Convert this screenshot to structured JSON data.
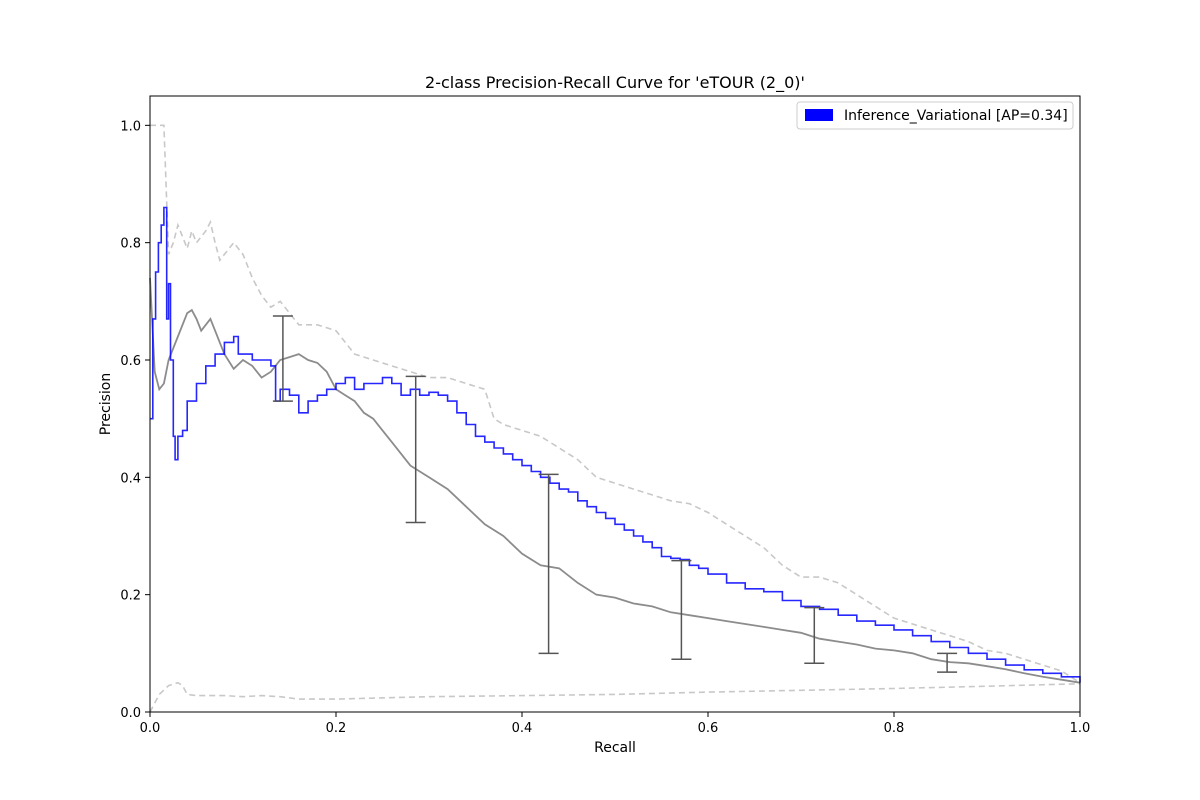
{
  "chart_data": {
    "type": "line",
    "title": "2-class Precision-Recall Curve for 'eTOUR (2_0)'",
    "xlabel": "Recall",
    "ylabel": "Precision",
    "xlim": [
      0,
      1
    ],
    "ylim": [
      0,
      1.05
    ],
    "xticks": [
      "0.0",
      "0.2",
      "0.4",
      "0.6",
      "0.8",
      "1.0"
    ],
    "yticks": [
      "0.0",
      "0.2",
      "0.4",
      "0.6",
      "0.8",
      "1.0"
    ],
    "grid": false,
    "legend": {
      "placement": "top-right",
      "entries": [
        {
          "label": "Inference_Variational [AP=0.34]",
          "color": "#0000ff"
        }
      ]
    },
    "series": [
      {
        "name": "Inference_Variational [AP=0.34]",
        "role": "main",
        "color": "#0000ff",
        "step": true,
        "x": [
          0.0,
          0.003,
          0.006,
          0.009,
          0.012,
          0.015,
          0.018,
          0.02,
          0.022,
          0.025,
          0.027,
          0.03,
          0.035,
          0.04,
          0.05,
          0.06,
          0.07,
          0.08,
          0.09,
          0.095,
          0.1,
          0.11,
          0.12,
          0.13,
          0.135,
          0.14,
          0.15,
          0.16,
          0.17,
          0.18,
          0.19,
          0.2,
          0.21,
          0.22,
          0.23,
          0.24,
          0.25,
          0.26,
          0.27,
          0.28,
          0.29,
          0.3,
          0.31,
          0.32,
          0.33,
          0.34,
          0.35,
          0.36,
          0.37,
          0.38,
          0.39,
          0.4,
          0.41,
          0.42,
          0.43,
          0.44,
          0.45,
          0.46,
          0.47,
          0.48,
          0.49,
          0.5,
          0.51,
          0.52,
          0.53,
          0.54,
          0.55,
          0.56,
          0.57,
          0.58,
          0.59,
          0.6,
          0.62,
          0.64,
          0.66,
          0.68,
          0.7,
          0.72,
          0.74,
          0.76,
          0.78,
          0.8,
          0.82,
          0.84,
          0.86,
          0.88,
          0.9,
          0.92,
          0.94,
          0.96,
          0.98,
          1.0
        ],
        "y": [
          0.5,
          0.67,
          0.75,
          0.8,
          0.83,
          0.86,
          0.67,
          0.73,
          0.6,
          0.47,
          0.43,
          0.47,
          0.48,
          0.53,
          0.56,
          0.59,
          0.61,
          0.63,
          0.64,
          0.61,
          0.61,
          0.6,
          0.6,
          0.59,
          0.53,
          0.55,
          0.54,
          0.51,
          0.53,
          0.54,
          0.55,
          0.56,
          0.57,
          0.55,
          0.56,
          0.56,
          0.57,
          0.56,
          0.54,
          0.55,
          0.54,
          0.545,
          0.54,
          0.53,
          0.51,
          0.49,
          0.47,
          0.46,
          0.45,
          0.44,
          0.43,
          0.42,
          0.41,
          0.4,
          0.39,
          0.38,
          0.375,
          0.36,
          0.35,
          0.34,
          0.33,
          0.32,
          0.31,
          0.3,
          0.29,
          0.28,
          0.265,
          0.262,
          0.26,
          0.25,
          0.245,
          0.235,
          0.22,
          0.21,
          0.205,
          0.19,
          0.18,
          0.175,
          0.165,
          0.155,
          0.148,
          0.14,
          0.13,
          0.12,
          0.11,
          0.1,
          0.09,
          0.08,
          0.072,
          0.066,
          0.06,
          0.05
        ]
      },
      {
        "name": "",
        "role": "mean",
        "color": "#8c8c8c",
        "x": [
          0.0,
          0.005,
          0.01,
          0.015,
          0.02,
          0.03,
          0.04,
          0.045,
          0.05,
          0.055,
          0.06,
          0.065,
          0.07,
          0.08,
          0.09,
          0.1,
          0.11,
          0.12,
          0.13,
          0.14,
          0.15,
          0.16,
          0.17,
          0.18,
          0.19,
          0.2,
          0.21,
          0.22,
          0.23,
          0.24,
          0.25,
          0.26,
          0.28,
          0.3,
          0.32,
          0.34,
          0.36,
          0.38,
          0.4,
          0.42,
          0.44,
          0.46,
          0.48,
          0.5,
          0.52,
          0.54,
          0.56,
          0.58,
          0.6,
          0.62,
          0.64,
          0.66,
          0.68,
          0.7,
          0.72,
          0.74,
          0.76,
          0.78,
          0.8,
          0.82,
          0.84,
          0.86,
          0.88,
          0.9,
          0.92,
          0.94,
          0.96,
          0.98,
          1.0
        ],
        "y": [
          0.74,
          0.58,
          0.55,
          0.56,
          0.6,
          0.64,
          0.68,
          0.685,
          0.67,
          0.65,
          0.66,
          0.67,
          0.65,
          0.61,
          0.585,
          0.6,
          0.59,
          0.57,
          0.58,
          0.6,
          0.605,
          0.61,
          0.6,
          0.595,
          0.58,
          0.55,
          0.54,
          0.53,
          0.51,
          0.5,
          0.48,
          0.46,
          0.42,
          0.4,
          0.38,
          0.35,
          0.32,
          0.3,
          0.27,
          0.25,
          0.245,
          0.22,
          0.2,
          0.195,
          0.185,
          0.18,
          0.17,
          0.165,
          0.16,
          0.155,
          0.15,
          0.145,
          0.14,
          0.135,
          0.125,
          0.12,
          0.115,
          0.108,
          0.105,
          0.1,
          0.09,
          0.085,
          0.083,
          0.078,
          0.073,
          0.066,
          0.06,
          0.055,
          0.05
        ]
      },
      {
        "name": "",
        "role": "upper",
        "color": "#c8c8c8",
        "dashed": true,
        "x": [
          0.0,
          0.005,
          0.01,
          0.015,
          0.02,
          0.025,
          0.03,
          0.035,
          0.04,
          0.045,
          0.05,
          0.06,
          0.065,
          0.07,
          0.075,
          0.08,
          0.09,
          0.1,
          0.11,
          0.12,
          0.13,
          0.14,
          0.15,
          0.16,
          0.17,
          0.18,
          0.2,
          0.22,
          0.24,
          0.26,
          0.28,
          0.3,
          0.32,
          0.34,
          0.36,
          0.37,
          0.38,
          0.4,
          0.42,
          0.44,
          0.46,
          0.48,
          0.5,
          0.52,
          0.54,
          0.56,
          0.58,
          0.6,
          0.62,
          0.64,
          0.66,
          0.68,
          0.7,
          0.72,
          0.74,
          0.76,
          0.78,
          0.8,
          0.82,
          0.84,
          0.86,
          0.88,
          0.9,
          0.92,
          0.94,
          0.96,
          0.98,
          1.0
        ],
        "y": [
          1.0,
          1.0,
          1.0,
          1.0,
          0.78,
          0.8,
          0.83,
          0.81,
          0.79,
          0.82,
          0.8,
          0.82,
          0.835,
          0.8,
          0.77,
          0.78,
          0.8,
          0.78,
          0.74,
          0.71,
          0.69,
          0.7,
          0.68,
          0.66,
          0.66,
          0.66,
          0.65,
          0.61,
          0.6,
          0.59,
          0.58,
          0.57,
          0.57,
          0.56,
          0.55,
          0.5,
          0.49,
          0.48,
          0.47,
          0.45,
          0.43,
          0.4,
          0.39,
          0.38,
          0.37,
          0.36,
          0.355,
          0.34,
          0.32,
          0.3,
          0.28,
          0.25,
          0.23,
          0.23,
          0.22,
          0.2,
          0.18,
          0.16,
          0.15,
          0.14,
          0.13,
          0.12,
          0.105,
          0.1,
          0.09,
          0.08,
          0.07,
          0.05
        ]
      },
      {
        "name": "",
        "role": "lower",
        "color": "#c8c8c8",
        "dashed": true,
        "x": [
          0.0,
          0.01,
          0.02,
          0.03,
          0.035,
          0.04,
          0.05,
          0.08,
          0.1,
          0.12,
          0.14,
          0.16,
          0.2,
          0.3,
          0.4,
          0.5,
          0.6,
          0.7,
          0.8,
          0.9,
          1.0
        ],
        "y": [
          0.0,
          0.03,
          0.045,
          0.05,
          0.045,
          0.03,
          0.028,
          0.028,
          0.026,
          0.028,
          0.026,
          0.022,
          0.022,
          0.026,
          0.028,
          0.03,
          0.034,
          0.037,
          0.04,
          0.044,
          0.048
        ]
      }
    ],
    "error_bars": [
      {
        "x": 0.1429,
        "low": 0.53,
        "high": 0.675
      },
      {
        "x": 0.2857,
        "low": 0.323,
        "high": 0.572
      },
      {
        "x": 0.4286,
        "low": 0.1,
        "high": 0.405
      },
      {
        "x": 0.5714,
        "low": 0.09,
        "high": 0.258
      },
      {
        "x": 0.7143,
        "low": 0.083,
        "high": 0.178
      },
      {
        "x": 0.8571,
        "low": 0.068,
        "high": 0.1
      }
    ]
  }
}
